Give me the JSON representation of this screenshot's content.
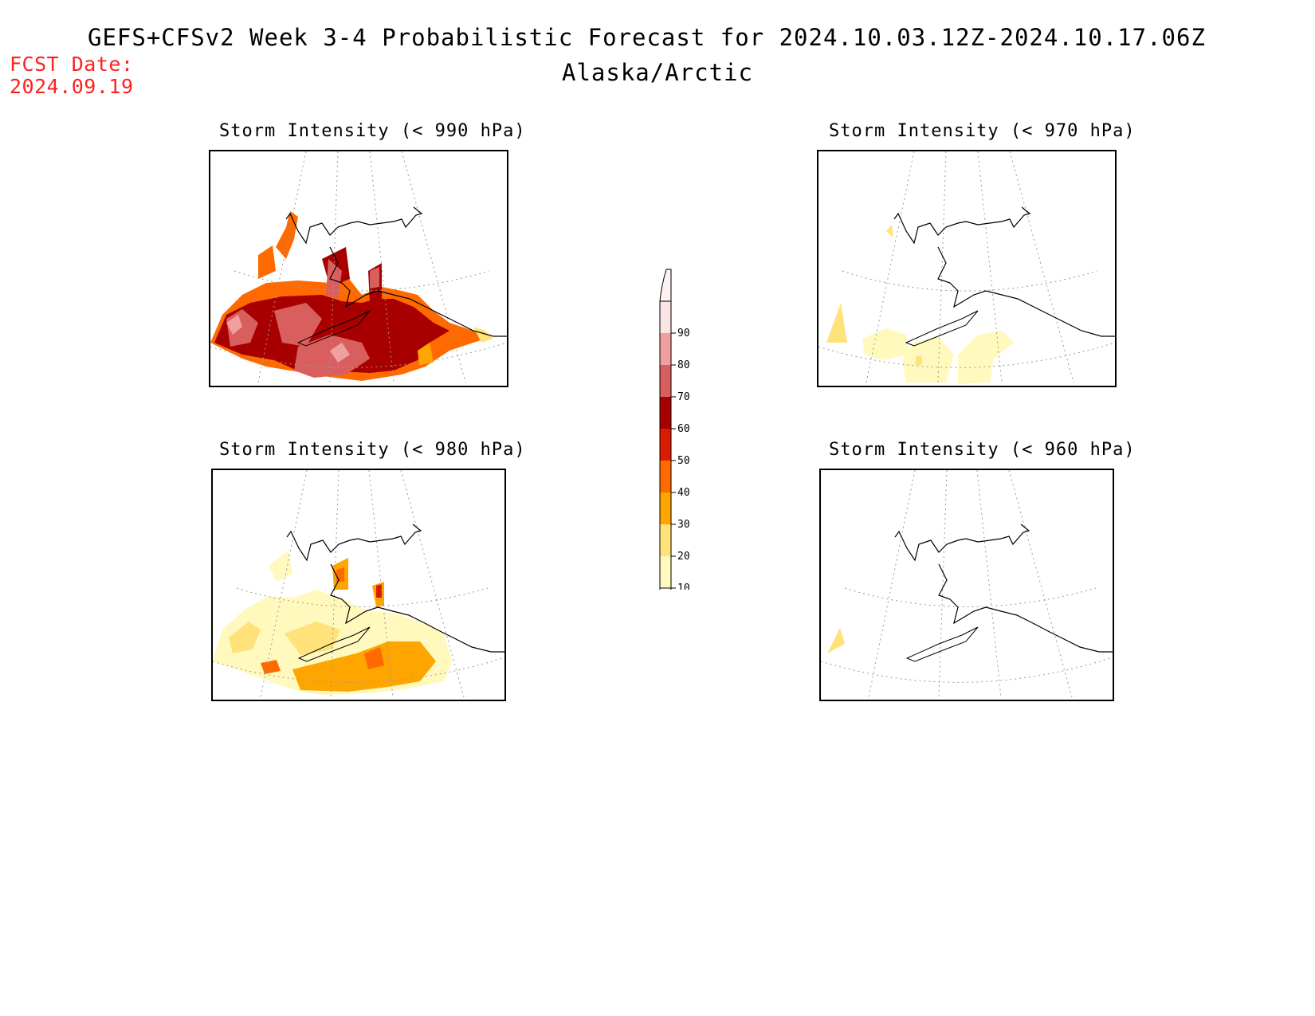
{
  "header": {
    "title": "GEFS+CFSv2 Week 3-4 Probabilistic Forecast for 2024.10.03.12Z-2024.10.17.06Z",
    "region": "Alaska/Arctic",
    "fcst_label": "FCST Date:",
    "fcst_date": "2024.09.19"
  },
  "panels": [
    {
      "title": "Storm Intensity (< 990 hPa)",
      "level": "high"
    },
    {
      "title": "Storm Intensity (< 970 hPa)",
      "level": "low"
    },
    {
      "title": "Storm Intensity (< 980 hPa)",
      "level": "medium"
    },
    {
      "title": "Storm Intensity (< 960 hPa)",
      "level": "minimal"
    }
  ],
  "colorbar": {
    "labels": [
      "90",
      "80",
      "70",
      "60",
      "50",
      "40",
      "30",
      "20",
      "10"
    ],
    "colors": [
      "#fbe4e4",
      "#f0a0a0",
      "#d95f5f",
      "#a80000",
      "#dc1c00",
      "#ff6a00",
      "#ffa500",
      "#ffe27a",
      "#fff9be"
    ]
  }
}
